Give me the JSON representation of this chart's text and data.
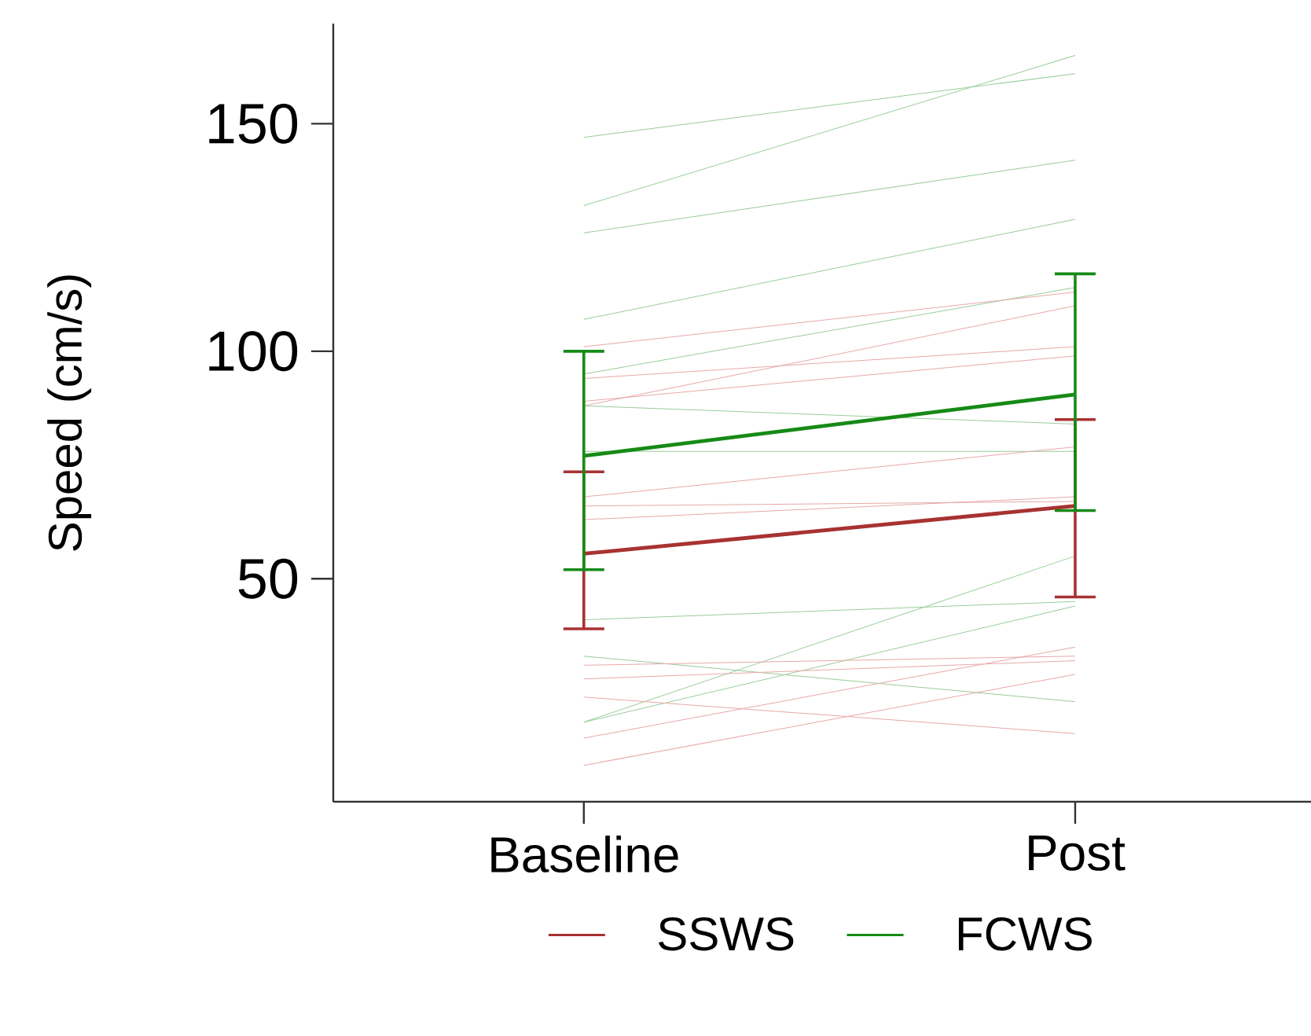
{
  "chart_data": {
    "type": "line",
    "ylabel": "Speed (cm/s)",
    "categories": [
      "Baseline",
      "Post"
    ],
    "ylim": [
      1,
      172
    ],
    "yticks": [
      50,
      100,
      150
    ],
    "legend": "bottom",
    "series": [
      {
        "color": "#98cc98",
        "values": [
          147,
          161
        ]
      },
      {
        "color": "#98cc98",
        "values": [
          132,
          165
        ]
      },
      {
        "color": "#98cc98",
        "values": [
          126,
          142
        ]
      },
      {
        "color": "#98cc98",
        "values": [
          107,
          129
        ]
      },
      {
        "color": "#98cc98",
        "values": [
          95,
          114
        ]
      },
      {
        "color": "#98cc98",
        "values": [
          88,
          84
        ]
      },
      {
        "color": "#98cc98",
        "values": [
          78,
          78
        ]
      },
      {
        "color": "#98cc98",
        "values": [
          41,
          45
        ]
      },
      {
        "color": "#98cc98",
        "values": [
          33,
          23
        ]
      },
      {
        "color": "#98cc98",
        "values": [
          18.5,
          55
        ]
      },
      {
        "color": "#98cc98",
        "values": [
          18.5,
          44
        ]
      },
      {
        "color": "#e8a8a8",
        "values": [
          101,
          113
        ]
      },
      {
        "color": "#e8a8a8",
        "values": [
          88,
          110
        ]
      },
      {
        "color": "#e8a8a8",
        "values": [
          94,
          101
        ]
      },
      {
        "color": "#e8a8a8",
        "values": [
          89,
          99
        ]
      },
      {
        "color": "#e8a8a8",
        "values": [
          68,
          79
        ]
      },
      {
        "color": "#e8a8a8",
        "values": [
          66,
          67
        ]
      },
      {
        "color": "#e8a8a8",
        "values": [
          63,
          68
        ]
      },
      {
        "color": "#e8a8a8",
        "values": [
          28,
          32
        ]
      },
      {
        "color": "#e8a8a8",
        "values": [
          31,
          33
        ]
      },
      {
        "color": "#e8a8a8",
        "values": [
          24,
          16
        ]
      },
      {
        "color": "#e8a8a8",
        "values": [
          15,
          35
        ]
      },
      {
        "color": "#e8a8a8",
        "values": [
          9,
          29
        ]
      },
      {
        "name": "SSWS",
        "color": "#a83232",
        "values": [
          55.5,
          66
        ],
        "errors": [
          [
            39,
            73.5
          ],
          [
            46,
            85
          ]
        ]
      },
      {
        "name": "FCWS",
        "color": "#168a16",
        "values": [
          77,
          90.5
        ],
        "errors": [
          [
            52,
            100
          ],
          [
            65,
            117
          ]
        ]
      }
    ]
  }
}
